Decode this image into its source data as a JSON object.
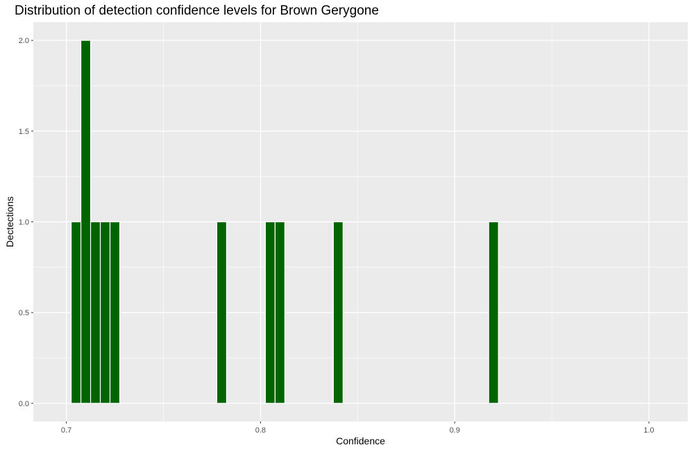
{
  "chart_data": {
    "type": "bar",
    "title": "Distribution of detection confidence levels for Brown Gerygone",
    "xlabel": "Confidence",
    "ylabel": "Dectections",
    "xlim": [
      0.683,
      1.02
    ],
    "ylim": [
      -0.1,
      2.1
    ],
    "x_ticks": [
      0.7,
      0.8,
      0.9,
      1.0
    ],
    "x_tick_labels": [
      "0.7",
      "0.8",
      "0.9",
      "1.0"
    ],
    "y_ticks": [
      0.0,
      0.5,
      1.0,
      1.5,
      2.0
    ],
    "y_tick_labels": [
      "0.0",
      "0.5",
      "1.0",
      "1.5",
      "2.0"
    ],
    "bin_width": 0.005,
    "bins": [
      {
        "x": 0.705,
        "count": 1
      },
      {
        "x": 0.71,
        "count": 2
      },
      {
        "x": 0.715,
        "count": 1
      },
      {
        "x": 0.72,
        "count": 1
      },
      {
        "x": 0.725,
        "count": 1
      },
      {
        "x": 0.78,
        "count": 1
      },
      {
        "x": 0.805,
        "count": 1
      },
      {
        "x": 0.81,
        "count": 1
      },
      {
        "x": 0.84,
        "count": 1
      },
      {
        "x": 0.92,
        "count": 1
      }
    ],
    "bar_color": "#006400",
    "panel_background": "#ebebeb",
    "grid_color": "#ffffff",
    "grid": true,
    "legend": "none"
  }
}
